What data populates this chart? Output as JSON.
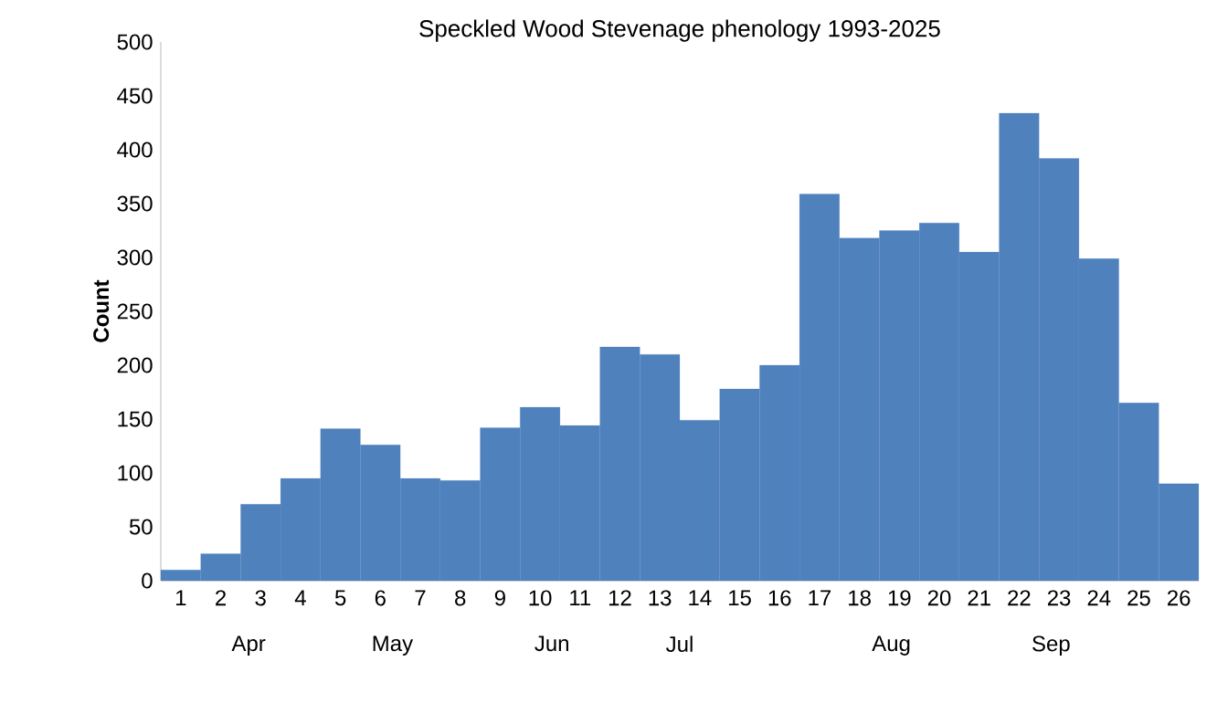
{
  "chart_data": {
    "type": "bar",
    "title": "Speckled Wood Stevenage phenology 1993-2025",
    "ylabel": "Count",
    "categories": [
      "1",
      "2",
      "3",
      "4",
      "5",
      "6",
      "7",
      "8",
      "9",
      "10",
      "11",
      "12",
      "13",
      "14",
      "15",
      "16",
      "17",
      "18",
      "19",
      "20",
      "21",
      "22",
      "23",
      "24",
      "25",
      "26"
    ],
    "values": [
      10,
      25,
      71,
      95,
      141,
      126,
      95,
      93,
      142,
      161,
      144,
      217,
      210,
      149,
      178,
      200,
      359,
      318,
      325,
      332,
      305,
      434,
      392,
      299,
      165,
      90
    ],
    "color": "#4f81bd",
    "ylim": [
      0,
      500
    ],
    "yticks": [
      0,
      50,
      100,
      150,
      200,
      250,
      300,
      350,
      400,
      450,
      500
    ],
    "grid": false,
    "annotations": [
      "Apr",
      "May",
      "Jun",
      "Jul",
      "Aug",
      "Sep"
    ]
  }
}
